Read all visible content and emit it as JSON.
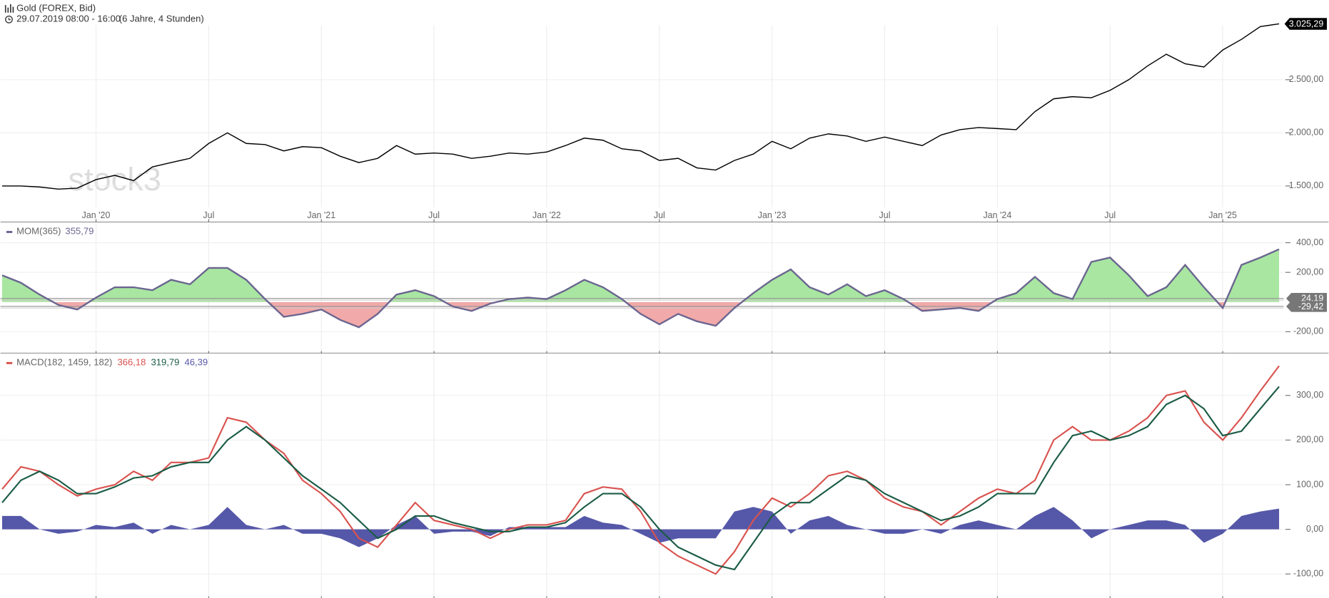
{
  "header": {
    "title": "Gold (FOREX, Bid)",
    "period": "29.07.2019 08:00 - 16:00",
    "span": "(6 Jahre, 4 Stunden)",
    "watermark": "stock3"
  },
  "chart_data": [
    {
      "type": "line",
      "color": "#000000",
      "x": [
        "2019-08",
        "2019-09",
        "2019-10",
        "2019-11",
        "2019-12",
        "2020-01",
        "2020-02",
        "2020-03",
        "2020-04",
        "2020-05",
        "2020-06",
        "2020-07",
        "2020-08",
        "2020-09",
        "2020-10",
        "2020-11",
        "2020-12",
        "2021-01",
        "2021-02",
        "2021-03",
        "2021-04",
        "2021-05",
        "2021-06",
        "2021-07",
        "2021-08",
        "2021-09",
        "2021-10",
        "2021-11",
        "2021-12",
        "2022-01",
        "2022-02",
        "2022-03",
        "2022-04",
        "2022-05",
        "2022-06",
        "2022-07",
        "2022-08",
        "2022-09",
        "2022-10",
        "2022-11",
        "2022-12",
        "2023-01",
        "2023-02",
        "2023-03",
        "2023-04",
        "2023-05",
        "2023-06",
        "2023-07",
        "2023-08",
        "2023-09",
        "2023-10",
        "2023-11",
        "2023-12",
        "2024-01",
        "2024-02",
        "2024-03",
        "2024-04",
        "2024-05",
        "2024-06",
        "2024-07",
        "2024-08",
        "2024-09",
        "2024-10",
        "2024-11",
        "2024-12",
        "2025-01",
        "2025-02",
        "2025-03",
        "2025-04"
      ],
      "values": [
        1500,
        1500,
        1490,
        1470,
        1480,
        1560,
        1600,
        1550,
        1680,
        1720,
        1760,
        1900,
        2000,
        1900,
        1890,
        1830,
        1870,
        1860,
        1780,
        1720,
        1760,
        1880,
        1800,
        1810,
        1800,
        1760,
        1780,
        1810,
        1800,
        1820,
        1880,
        1950,
        1930,
        1850,
        1830,
        1740,
        1760,
        1670,
        1650,
        1740,
        1800,
        1920,
        1850,
        1950,
        1990,
        1970,
        1920,
        1960,
        1920,
        1880,
        1980,
        2030,
        2050,
        2040,
        2030,
        2200,
        2320,
        2340,
        2330,
        2400,
        2500,
        2630,
        2740,
        2650,
        2620,
        2780,
        2880,
        3000,
        3025.29
      ],
      "last_label": "3.025,29",
      "xticks": [
        {
          "value": "2020-01",
          "label": "Jan '20"
        },
        {
          "value": "2020-07",
          "label": "Jul"
        },
        {
          "value": "2021-01",
          "label": "Jan '21"
        },
        {
          "value": "2021-07",
          "label": "Jul"
        },
        {
          "value": "2022-01",
          "label": "Jan '22"
        },
        {
          "value": "2022-07",
          "label": "Jul"
        },
        {
          "value": "2023-01",
          "label": "Jan '23"
        },
        {
          "value": "2023-07",
          "label": "Jul"
        },
        {
          "value": "2024-01",
          "label": "Jan '24"
        },
        {
          "value": "2024-07",
          "label": "Jul"
        },
        {
          "value": "2025-01",
          "label": "Jan '25"
        }
      ],
      "ylim": [
        1300,
        3250
      ],
      "yticks": [
        {
          "value": 1500,
          "label": "1.500,00"
        },
        {
          "value": 2000,
          "label": "2.000,00"
        },
        {
          "value": 2500,
          "label": "2.500,00"
        }
      ]
    },
    {
      "type": "area",
      "title": "MOM(365)",
      "color": "#6b6590",
      "positive_color": "#a8e6a1",
      "negative_color": "#f2a9a9",
      "values": [
        180,
        130,
        50,
        -20,
        -50,
        30,
        100,
        100,
        80,
        150,
        120,
        230,
        230,
        150,
        20,
        -100,
        -80,
        -50,
        -120,
        -170,
        -80,
        50,
        80,
        40,
        -30,
        -60,
        -10,
        20,
        30,
        20,
        80,
        150,
        100,
        20,
        -80,
        -150,
        -80,
        -130,
        -160,
        -40,
        60,
        150,
        220,
        100,
        50,
        120,
        40,
        80,
        20,
        -60,
        -50,
        -40,
        -60,
        20,
        60,
        170,
        60,
        20,
        270,
        300,
        180,
        40,
        100,
        250,
        100,
        -40,
        250,
        300,
        355.79
      ],
      "last_label": "355,79",
      "reference_lines": [
        {
          "value": 24.19,
          "label": "24,19"
        },
        {
          "value": -29.42,
          "label": "-29,42"
        }
      ],
      "ylim": [
        -330,
        525
      ],
      "yticks": [
        {
          "value": -200,
          "label": "-200,00"
        },
        {
          "value": 200,
          "label": "200,00"
        },
        {
          "value": 400,
          "label": "400,00"
        }
      ]
    },
    {
      "type": "line",
      "title": "MACD(182, 1459, 182)",
      "series": [
        {
          "type": "line",
          "color": "#d9534f",
          "last_label": "366,18",
          "values": [
            90,
            140,
            130,
            100,
            75,
            90,
            100,
            130,
            110,
            150,
            150,
            160,
            250,
            240,
            200,
            170,
            110,
            80,
            40,
            -20,
            -40,
            10,
            60,
            20,
            10,
            0,
            -20,
            0,
            10,
            10,
            20,
            80,
            95,
            90,
            40,
            -30,
            -60,
            -80,
            -100,
            -50,
            20,
            70,
            50,
            80,
            120,
            130,
            110,
            70,
            50,
            40,
            10,
            40,
            70,
            90,
            80,
            110,
            200,
            230,
            200,
            200,
            220,
            250,
            300,
            310,
            240,
            200,
            250,
            310,
            366.18
          ]
        },
        {
          "type": "line",
          "color": "#1a5c45",
          "last_label": "319,79",
          "values": [
            60,
            110,
            130,
            110,
            80,
            80,
            95,
            115,
            120,
            140,
            150,
            150,
            200,
            230,
            200,
            160,
            120,
            90,
            60,
            20,
            -20,
            0,
            30,
            30,
            15,
            5,
            -5,
            -5,
            5,
            5,
            15,
            50,
            80,
            80,
            50,
            0,
            -40,
            -60,
            -80,
            -90,
            -30,
            30,
            60,
            60,
            90,
            120,
            110,
            80,
            60,
            40,
            20,
            30,
            50,
            80,
            80,
            80,
            150,
            210,
            220,
            200,
            210,
            230,
            280,
            300,
            270,
            210,
            220,
            270,
            319.79
          ]
        },
        {
          "type": "area",
          "color": "#5557a8",
          "last_label": "46,39",
          "values": [
            30,
            30,
            0,
            -10,
            -5,
            10,
            5,
            15,
            -10,
            10,
            0,
            10,
            50,
            10,
            0,
            10,
            -10,
            -10,
            -20,
            -40,
            -20,
            10,
            30,
            -10,
            -5,
            -5,
            -15,
            5,
            5,
            5,
            5,
            30,
            15,
            10,
            -10,
            -30,
            -20,
            -20,
            -20,
            40,
            50,
            40,
            -10,
            20,
            30,
            10,
            0,
            -10,
            -10,
            0,
            -10,
            10,
            20,
            10,
            0,
            30,
            50,
            20,
            -20,
            0,
            10,
            20,
            20,
            10,
            -30,
            -10,
            30,
            40,
            46.39
          ]
        }
      ],
      "ylim": [
        -150,
        390
      ],
      "yticks": [
        {
          "value": -100,
          "label": "-100,00"
        },
        {
          "value": 0,
          "label": "0,00"
        },
        {
          "value": 100,
          "label": "100,00"
        },
        {
          "value": 200,
          "label": "200,00"
        },
        {
          "value": 300,
          "label": "300,00"
        }
      ]
    }
  ]
}
